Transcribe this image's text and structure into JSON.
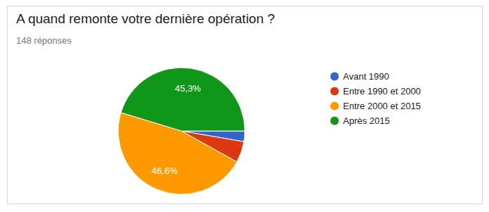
{
  "chart_data": {
    "type": "pie",
    "title": "A quand remonte votre dernière opération ?",
    "subtitle": "148 réponses",
    "categories": [
      "Avant 1990",
      "Entre 1990 et 2000",
      "Entre 2000 et 2015",
      "Après 2015"
    ],
    "values": [
      2.7,
      5.4,
      46.6,
      45.3
    ],
    "colors": [
      "#3366cc",
      "#dc3912",
      "#ff9900",
      "#109618"
    ],
    "data_labels": true,
    "value_labels": [
      null,
      null,
      "46,6%",
      "45,3%"
    ],
    "legend": "right"
  }
}
